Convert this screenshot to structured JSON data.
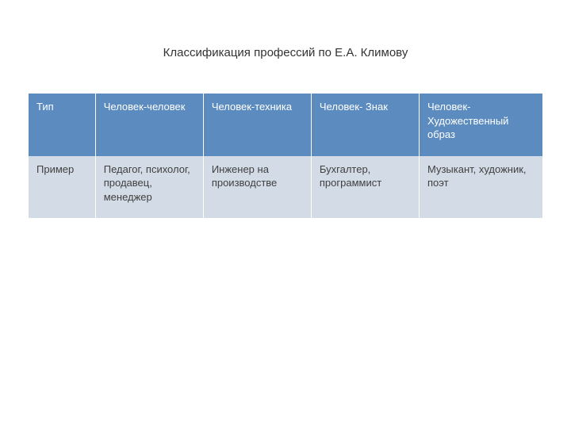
{
  "title": "Классификация профессий по Е.А. Климову",
  "table": {
    "type": "table",
    "header_bg": "#5b8bbf",
    "header_fg": "#ffffff",
    "row_bg_even": "#d3dce6",
    "row_bg_odd": "#ebeff5",
    "cell_fg": "#404040",
    "border_color": "#ffffff",
    "font_size_pt": 13,
    "column_widths_pct": [
      13,
      21,
      21,
      21,
      24
    ],
    "columns": [
      "Тип",
      "Человек-человек",
      "Человек-техника",
      "Человек- Знак",
      "Человек- Художественный образ"
    ],
    "rows": [
      [
        "Пример",
        "Педагог, психолог, продавец, менеджер",
        "Инженер на производстве",
        "Бухгалтер, программист",
        "Музыкант, художник, поэт"
      ]
    ]
  }
}
